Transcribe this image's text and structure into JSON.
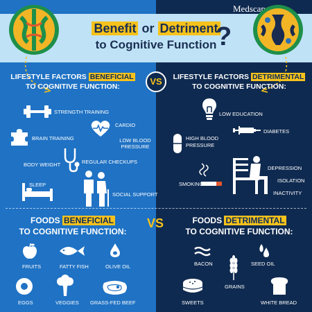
{
  "brand": "Medscape",
  "title": {
    "highlight_1": "Benefit",
    "connector": "or",
    "highlight_2": "Detriment",
    "line2": "to Cognitive Function"
  },
  "question_mark": "?",
  "vs_label": "VS",
  "lifestyle_beneficial": {
    "prefix": "LIFESTYLE FACTORS",
    "highlight": "BENEFICIAL",
    "suffix": "TO COGNITIVE FUNCTION:",
    "items": [
      {
        "label": "STRENGTH TRAINING",
        "icon": "dumbbell-icon"
      },
      {
        "label": "CARDIO",
        "icon": "heart-pulse-icon"
      },
      {
        "label": "BRAIN TRAINING",
        "icon": "puzzle-icon"
      },
      {
        "label": "LOW BLOOD PRESSURE",
        "icon": "heart-pulse-icon"
      },
      {
        "label": "BODY WEIGHT",
        "icon": ""
      },
      {
        "label": "REGULAR CHECKUPS",
        "icon": "stethoscope-icon"
      },
      {
        "label": "SLEEP",
        "icon": "bed-icon"
      },
      {
        "label": "SOCIAL SUPPORT",
        "icon": "people-icon"
      }
    ]
  },
  "lifestyle_detrimental": {
    "prefix": "LIFESTYLE FACTORS",
    "highlight": "DETRIMENTAL",
    "suffix": "TO COGNITIVE FUNCTION:",
    "items": [
      {
        "label": "LOW EDUCATION",
        "icon": "lightbulb-icon"
      },
      {
        "label": "HIGH BLOOD PRESSURE",
        "icon": "pill-icon"
      },
      {
        "label": "DIABETES",
        "icon": "syringe-icon"
      },
      {
        "label": "SMOKING",
        "icon": "cigarette-icon"
      },
      {
        "label": "DEPRESSION",
        "icon": "person-on-bench-icon"
      },
      {
        "label": "ISOLATION",
        "icon": ""
      },
      {
        "label": "INACTIVITY",
        "icon": ""
      }
    ]
  },
  "foods_beneficial": {
    "prefix": "FOODS",
    "highlight": "BENEFICIAL",
    "suffix": "TO COGNITIVE FUNCTION:",
    "items": [
      {
        "label": "FRUITS",
        "icon": "apple-icon"
      },
      {
        "label": "FATTY FISH",
        "icon": "fish-icon"
      },
      {
        "label": "OLIVE OIL",
        "icon": "oil-drop-icon"
      },
      {
        "label": "EGGS",
        "icon": "egg-icon"
      },
      {
        "label": "VEGGIES",
        "icon": "broccoli-icon"
      },
      {
        "label": "GRASS-FED BEEF",
        "icon": "steak-icon"
      }
    ]
  },
  "foods_detrimental": {
    "prefix": "FOODS",
    "highlight": "DETRIMENTAL",
    "suffix": "TO COGNITIVE FUNCTION:",
    "items": [
      {
        "label": "BACON",
        "icon": "bacon-icon"
      },
      {
        "label": "SEED OIL",
        "icon": "seed-oil-icon"
      },
      {
        "label": "GRAINS",
        "icon": "wheat-icon"
      },
      {
        "label": "SWEETS",
        "icon": "cake-icon"
      },
      {
        "label": "WHITE BREAD",
        "icon": "bread-icon"
      }
    ]
  },
  "colors": {
    "left_panel": "#1f72c4",
    "right_panel": "#0f2a50",
    "banner": "#bfe2f7",
    "accent_yellow": "#f6c21c",
    "title_navy": "#1a2f52"
  }
}
